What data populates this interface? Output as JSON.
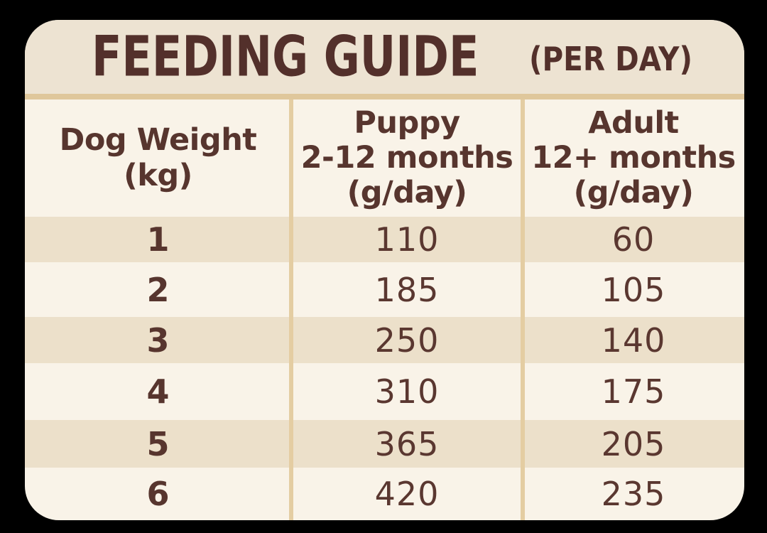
{
  "title": {
    "main": "FEEDING GUIDE",
    "suffix": "(PER DAY)"
  },
  "table": {
    "headers": [
      {
        "lines": [
          "Dog Weight",
          "(kg)"
        ]
      },
      {
        "lines": [
          "Puppy",
          "2-12 months",
          "(g/day)"
        ]
      },
      {
        "lines": [
          "Adult",
          "12+ months",
          "(g/day)"
        ]
      }
    ],
    "rows": [
      {
        "weight": "1",
        "puppy": "110",
        "adult": "60"
      },
      {
        "weight": "2",
        "puppy": "185",
        "adult": "105"
      },
      {
        "weight": "3",
        "puppy": "250",
        "adult": "140"
      },
      {
        "weight": "4",
        "puppy": "310",
        "adult": "175"
      },
      {
        "weight": "5",
        "puppy": "365",
        "adult": "205"
      },
      {
        "weight": "6",
        "puppy": "420",
        "adult": "235"
      }
    ]
  },
  "colors": {
    "background": "#000000",
    "card_cream": "#f9f3e8",
    "stripe_beige": "#ece0ca",
    "title_band": "#ede3d2",
    "tan_line": "#dfc79b",
    "text_brown": "#57352e",
    "title_brown": "#53302b"
  },
  "chart_data": {
    "type": "table",
    "title": "FEEDING GUIDE (PER DAY)",
    "columns": [
      "Dog Weight (kg)",
      "Puppy 2-12 months (g/day)",
      "Adult 12+ months (g/day)"
    ],
    "rows": [
      [
        1,
        110,
        60
      ],
      [
        2,
        185,
        105
      ],
      [
        3,
        250,
        140
      ],
      [
        4,
        310,
        175
      ],
      [
        5,
        365,
        205
      ],
      [
        6,
        420,
        235
      ]
    ]
  }
}
